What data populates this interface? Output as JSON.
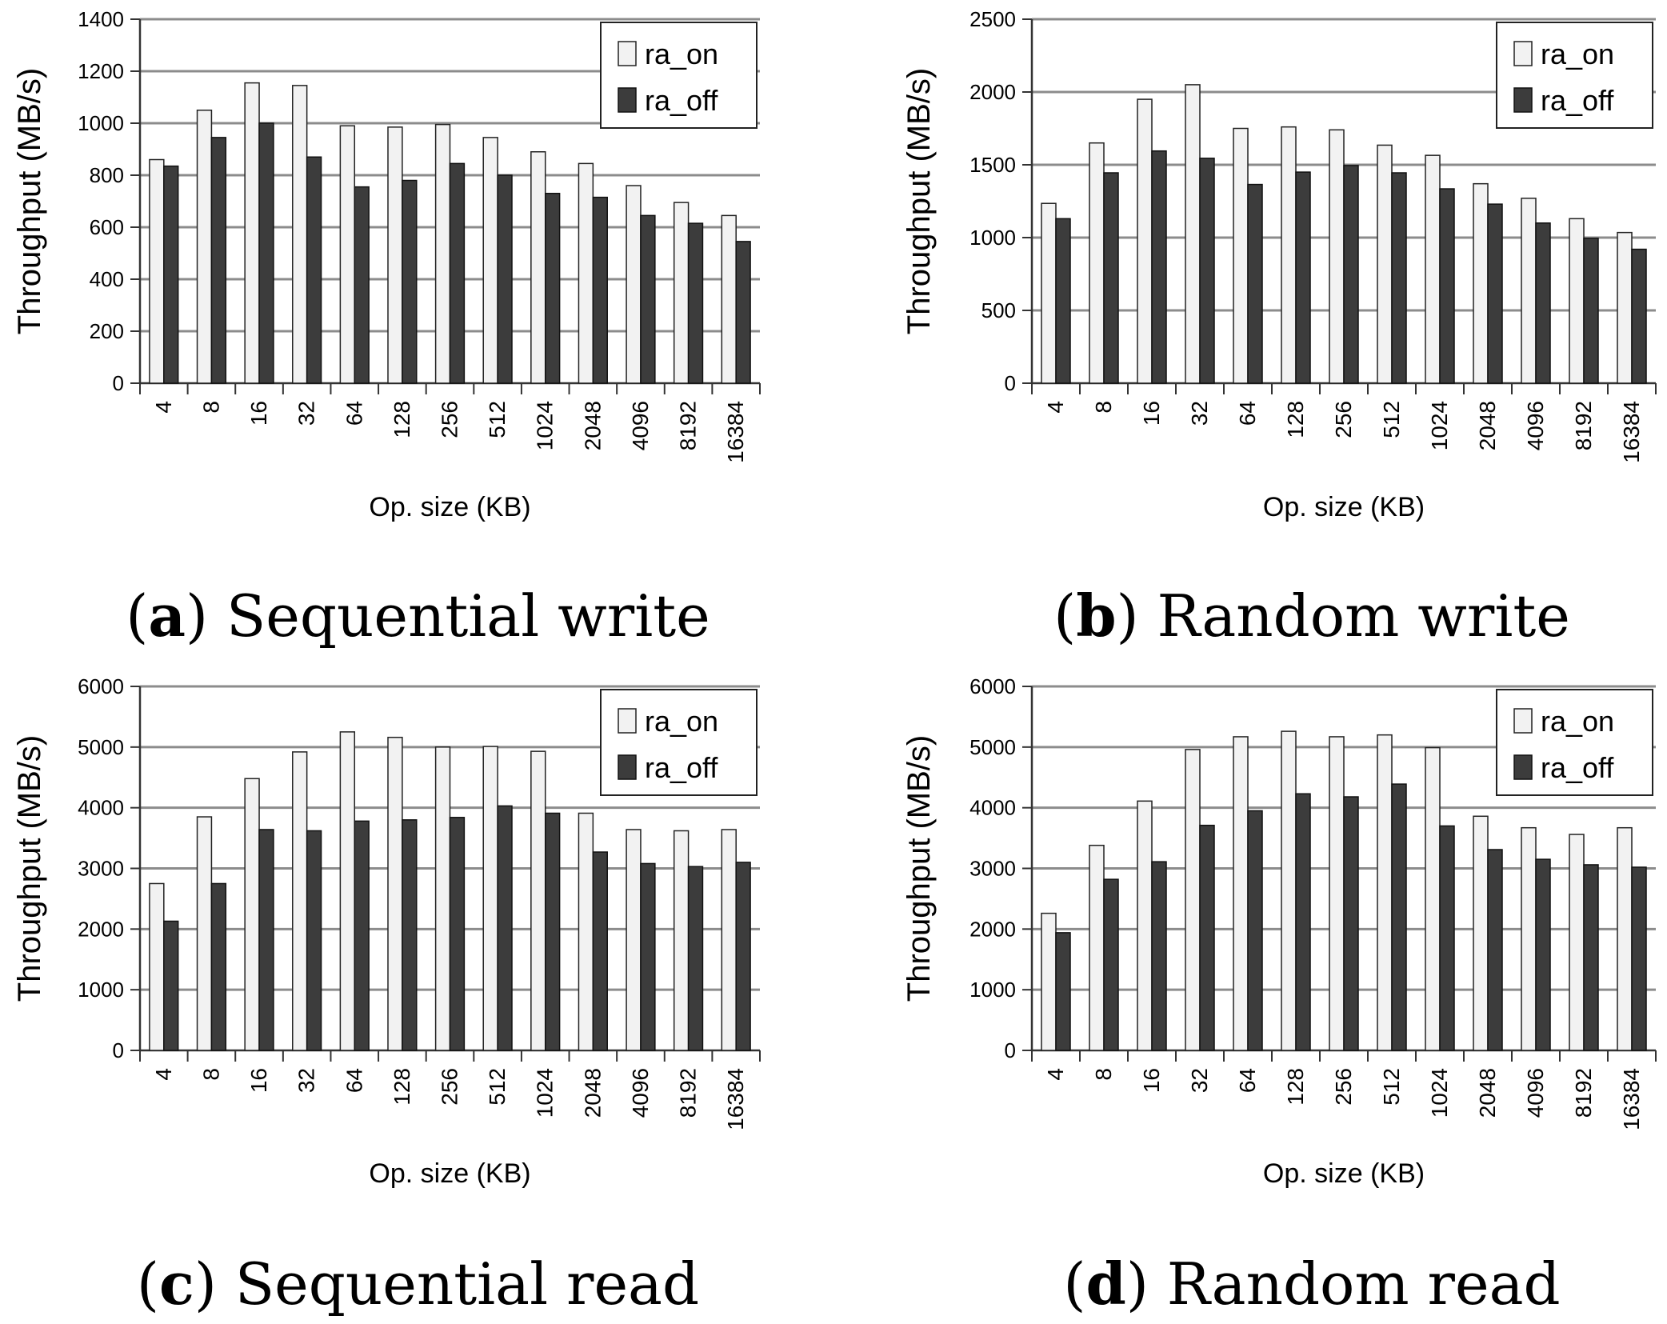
{
  "legend": {
    "on_label": "ra_on",
    "off_label": "ra_off"
  },
  "colors": {
    "ra_on": "#f2f2f2",
    "ra_off": "#3c3c3c",
    "grid": "#8c8c8c",
    "axis": "#333333"
  },
  "chart_data": [
    {
      "type": "bar",
      "caption_letter": "a",
      "caption_text": "Sequential write",
      "xlabel": "Op. size (KB)",
      "ylabel": "Throughput (MB/s)",
      "ylim": [
        0,
        1400
      ],
      "yticks": [
        0,
        200,
        400,
        600,
        800,
        1000,
        1200,
        1400
      ],
      "grid": true,
      "legend_position": "top-right",
      "categories": [
        "4",
        "8",
        "16",
        "32",
        "64",
        "128",
        "256",
        "512",
        "1024",
        "2048",
        "4096",
        "8192",
        "16384"
      ],
      "series": [
        {
          "name": "ra_on",
          "values": [
            860,
            1050,
            1155,
            1145,
            990,
            985,
            995,
            945,
            890,
            845,
            760,
            695,
            645
          ]
        },
        {
          "name": "ra_off",
          "values": [
            835,
            945,
            1000,
            870,
            755,
            780,
            845,
            800,
            730,
            715,
            645,
            615,
            545
          ]
        }
      ]
    },
    {
      "type": "bar",
      "caption_letter": "b",
      "caption_text": "Random write",
      "xlabel": "Op. size (KB)",
      "ylabel": "Throughput (MB/s)",
      "ylim": [
        0,
        2500
      ],
      "yticks": [
        0,
        500,
        1000,
        1500,
        2000,
        2500
      ],
      "grid": true,
      "legend_position": "top-right",
      "categories": [
        "4",
        "8",
        "16",
        "32",
        "64",
        "128",
        "256",
        "512",
        "1024",
        "2048",
        "4096",
        "8192",
        "16384"
      ],
      "series": [
        {
          "name": "ra_on",
          "values": [
            1235,
            1650,
            1950,
            2050,
            1750,
            1760,
            1740,
            1635,
            1565,
            1370,
            1270,
            1130,
            1035
          ]
        },
        {
          "name": "ra_off",
          "values": [
            1130,
            1445,
            1595,
            1545,
            1365,
            1450,
            1495,
            1445,
            1335,
            1230,
            1100,
            995,
            920
          ]
        }
      ]
    },
    {
      "type": "bar",
      "caption_letter": "c",
      "caption_text": "Sequential read",
      "xlabel": "Op. size (KB)",
      "ylabel": "Throughput (MB/s)",
      "ylim": [
        0,
        6000
      ],
      "yticks": [
        0,
        1000,
        2000,
        3000,
        4000,
        5000,
        6000
      ],
      "grid": true,
      "legend_position": "top-right",
      "categories": [
        "4",
        "8",
        "16",
        "32",
        "64",
        "128",
        "256",
        "512",
        "1024",
        "2048",
        "4096",
        "8192",
        "16384"
      ],
      "series": [
        {
          "name": "ra_on",
          "values": [
            2750,
            3850,
            4480,
            4920,
            5250,
            5160,
            5000,
            5010,
            4930,
            3910,
            3640,
            3620,
            3640
          ]
        },
        {
          "name": "ra_off",
          "values": [
            2130,
            2750,
            3640,
            3620,
            3780,
            3800,
            3840,
            4030,
            3910,
            3270,
            3080,
            3030,
            3100
          ]
        }
      ]
    },
    {
      "type": "bar",
      "caption_letter": "d",
      "caption_text": "Random read",
      "xlabel": "Op. size (KB)",
      "ylabel": "Throughput (MB/s)",
      "ylim": [
        0,
        6000
      ],
      "yticks": [
        0,
        1000,
        2000,
        3000,
        4000,
        5000,
        6000
      ],
      "grid": true,
      "legend_position": "top-right",
      "categories": [
        "4",
        "8",
        "16",
        "32",
        "64",
        "128",
        "256",
        "512",
        "1024",
        "2048",
        "4096",
        "8192",
        "16384"
      ],
      "series": [
        {
          "name": "ra_on",
          "values": [
            2260,
            3380,
            4110,
            4960,
            5170,
            5260,
            5170,
            5200,
            4990,
            3860,
            3670,
            3560,
            3670
          ]
        },
        {
          "name": "ra_off",
          "values": [
            1940,
            2820,
            3110,
            3710,
            3950,
            4230,
            4180,
            4390,
            3700,
            3310,
            3150,
            3060,
            3020
          ]
        }
      ]
    }
  ]
}
